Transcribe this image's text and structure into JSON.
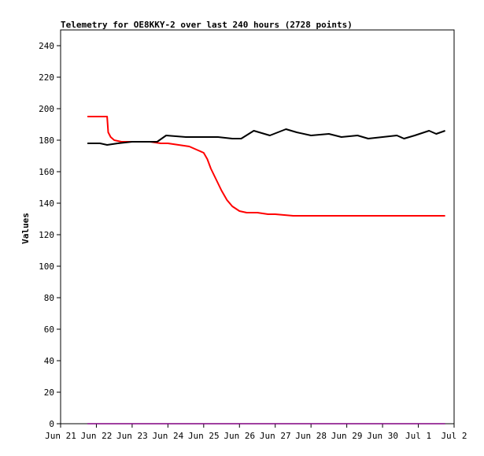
{
  "chart_data": {
    "type": "line",
    "title": "Telemetry for OE8KKY-2 over last 240 hours (2728 points)",
    "xlabel": "",
    "ylabel": "Values",
    "x_range": [
      "2024-06-21",
      "2024-07-02"
    ],
    "ylim": [
      0,
      250
    ],
    "x_ticks": [
      "Jun 21",
      "Jun 22",
      "Jun 23",
      "Jun 24",
      "Jun 25",
      "Jun 26",
      "Jun 27",
      "Jun 28",
      "Jun 29",
      "Jun 30",
      "Jul 1",
      "Jul 2"
    ],
    "y_ticks": [
      0,
      20,
      40,
      60,
      80,
      100,
      120,
      140,
      160,
      180,
      200,
      220,
      240
    ],
    "grid": false,
    "legend": "none",
    "series": [
      {
        "color": "#ff0000",
        "x": [
          0.75,
          1.3,
          1.33,
          1.4,
          1.5,
          1.7,
          2.0,
          2.5,
          2.8,
          3.0,
          3.3,
          3.6,
          3.8,
          4.0,
          4.1,
          4.2,
          4.35,
          4.5,
          4.65,
          4.8,
          5.0,
          5.2,
          5.5,
          5.8,
          6.0,
          6.5,
          7.0,
          8.0,
          9.0,
          10.0,
          10.75
        ],
        "y": [
          195,
          195,
          185,
          182,
          180,
          179,
          179,
          179,
          178,
          178,
          177,
          176,
          174,
          172,
          168,
          162,
          155,
          148,
          142,
          138,
          135,
          134,
          134,
          133,
          133,
          132,
          132,
          132,
          132,
          132,
          132
        ]
      },
      {
        "color": "#000000",
        "x": [
          0.75,
          1.1,
          1.3,
          1.6,
          2.0,
          2.5,
          2.7,
          2.95,
          3.5,
          4.0,
          4.4,
          4.8,
          5.05,
          5.4,
          5.55,
          5.85,
          6.3,
          6.6,
          7.0,
          7.5,
          7.85,
          8.3,
          8.6,
          9.0,
          9.4,
          9.6,
          9.9,
          10.3,
          10.5,
          10.75
        ],
        "y": [
          178,
          178,
          177,
          178,
          179,
          179,
          179,
          183,
          182,
          182,
          182,
          181,
          181,
          186,
          185,
          183,
          187,
          185,
          183,
          184,
          182,
          183,
          181,
          182,
          183,
          181,
          183,
          186,
          184,
          186
        ]
      },
      {
        "color": "#800080",
        "x": [
          0.75,
          10.75
        ],
        "y": [
          0,
          0
        ]
      }
    ]
  }
}
